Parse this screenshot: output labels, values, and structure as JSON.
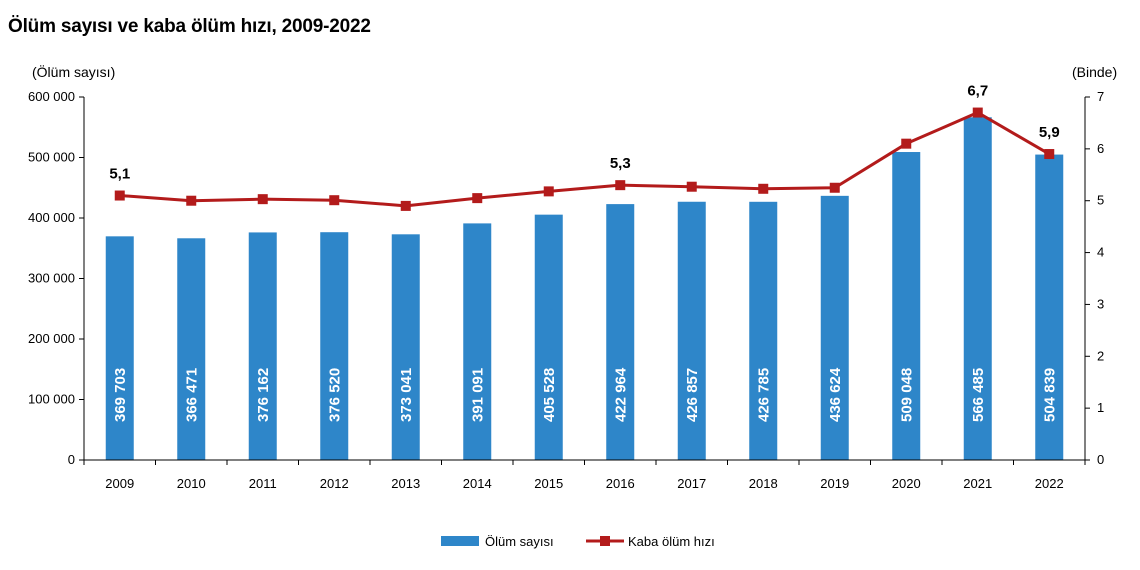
{
  "title": "Ölüm sayısı ve kaba ölüm hızı, 2009-2022",
  "colors": {
    "bar": "#2e86c9",
    "line": "#b31b1b",
    "axis": "#000000",
    "bar_label": "#ffffff"
  },
  "chart_data": {
    "type": "bar",
    "categories": [
      "2009",
      "2010",
      "2011",
      "2012",
      "2013",
      "2014",
      "2015",
      "2016",
      "2017",
      "2018",
      "2019",
      "2020",
      "2021",
      "2022"
    ],
    "y_left_label": "(Ölüm sayısı)",
    "y_right_label": "(Binde)",
    "y_left_range": [
      0,
      600000
    ],
    "y_right_range": [
      0,
      7
    ],
    "y_left_ticks": [
      "0",
      "100 000",
      "200 000",
      "300 000",
      "400 000",
      "500 000",
      "600 000"
    ],
    "y_right_ticks": [
      "0",
      "1",
      "2",
      "3",
      "4",
      "5",
      "6",
      "7"
    ],
    "grid": false,
    "legend_position": "bottom",
    "series": [
      {
        "name": "Ölüm sayısı",
        "type": "bar",
        "axis": "left",
        "values": [
          369703,
          366471,
          376162,
          376520,
          373041,
          391091,
          405528,
          422964,
          426857,
          426785,
          436624,
          509048,
          566485,
          504839
        ],
        "value_labels": [
          "369 703",
          "366 471",
          "376 162",
          "376 520",
          "373 041",
          "391 091",
          "405 528",
          "422 964",
          "426 857",
          "426 785",
          "436 624",
          "509 048",
          "566 485",
          "504 839"
        ]
      },
      {
        "name": "Kaba ölüm hızı",
        "type": "line",
        "axis": "right",
        "values": [
          5.1,
          5.0,
          5.03,
          5.01,
          4.9,
          5.05,
          5.18,
          5.3,
          5.27,
          5.23,
          5.25,
          6.1,
          6.7,
          5.9
        ],
        "labeled_points": [
          {
            "category": "2009",
            "label": "5,1"
          },
          {
            "category": "2016",
            "label": "5,3"
          },
          {
            "category": "2021",
            "label": "6,7"
          },
          {
            "category": "2022",
            "label": "5,9"
          }
        ]
      }
    ]
  }
}
